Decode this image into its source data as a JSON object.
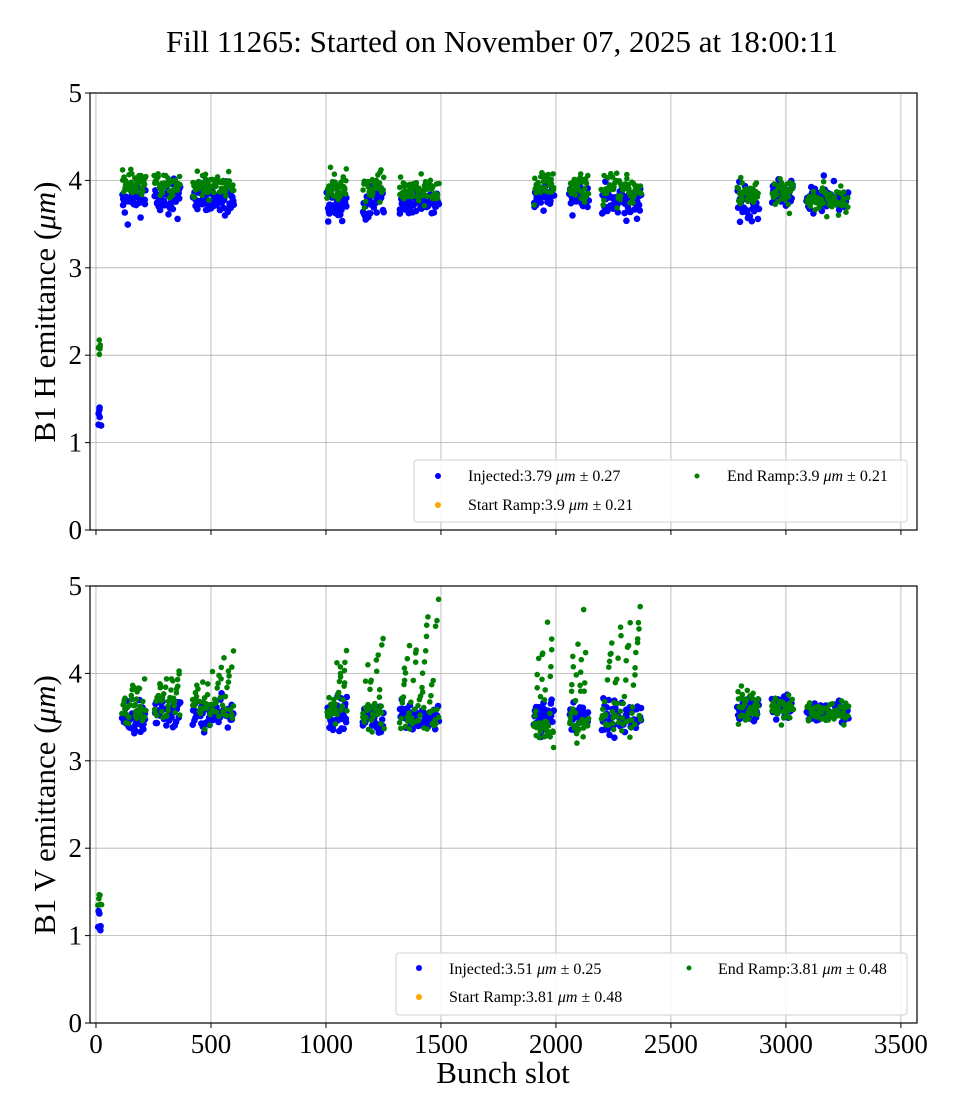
{
  "chart_data": [
    {
      "type": "scatter",
      "title": "Fill 11265: Started on November 07, 2025 at 18:00:11",
      "xlabel": "",
      "ylabel_prefix": "B1 H emittance (",
      "ylabel_unit": "μm",
      "ylabel_suffix": ")",
      "xlim": [
        -26,
        3570
      ],
      "ylim": [
        0,
        5
      ],
      "xticks": [
        0,
        500,
        1000,
        1500,
        2000,
        2500,
        3000,
        3500
      ],
      "xtick_labels_visible": false,
      "yticks": [
        0,
        1,
        2,
        3,
        4,
        5
      ],
      "ytick_labels": [
        "0",
        "1",
        "2",
        "3",
        "4",
        "5"
      ],
      "grid": true,
      "legend": {
        "placement": "lower-right",
        "entries": [
          {
            "name": "Injected",
            "label_prefix": "Injected:3.79 ",
            "unit": "μm",
            "label_suffix": " ± 0.27",
            "color": "#0000ff"
          },
          {
            "name": "Start Ramp",
            "label_prefix": "Start Ramp:3.9 ",
            "unit": "μm",
            "label_suffix": " ± 0.21",
            "color": "#ffa500"
          },
          {
            "name": "End Ramp",
            "label_prefix": "End Ramp:3.9 ",
            "unit": "μm",
            "label_suffix": " ± 0.21",
            "color": "#008000"
          }
        ]
      },
      "series": [
        {
          "name": "Injected",
          "color": "#0000ff",
          "clusters": [
            {
              "x": [
                10,
                20
              ],
              "mean": 1.32,
              "spread": 0.07,
              "n": 6
            },
            {
              "x": [
                115,
                215
              ],
              "mean": 3.78,
              "spread": 0.1,
              "n": 40
            },
            {
              "x": [
                255,
                365
              ],
              "mean": 3.79,
              "spread": 0.09,
              "n": 40
            },
            {
              "x": [
                420,
                600
              ],
              "mean": 3.78,
              "spread": 0.09,
              "n": 60
            },
            {
              "x": [
                1005,
                1090
              ],
              "mean": 3.72,
              "spread": 0.09,
              "n": 36
            },
            {
              "x": [
                1160,
                1250
              ],
              "mean": 3.75,
              "spread": 0.09,
              "n": 36
            },
            {
              "x": [
                1320,
                1490
              ],
              "mean": 3.77,
              "spread": 0.07,
              "n": 60
            },
            {
              "x": [
                1905,
                1990
              ],
              "mean": 3.82,
              "spread": 0.09,
              "n": 36
            },
            {
              "x": [
                2060,
                2140
              ],
              "mean": 3.82,
              "spread": 0.07,
              "n": 36
            },
            {
              "x": [
                2200,
                2370
              ],
              "mean": 3.76,
              "spread": 0.08,
              "n": 60
            },
            {
              "x": [
                2790,
                2880
              ],
              "mean": 3.76,
              "spread": 0.1,
              "n": 36
            },
            {
              "x": [
                2940,
                3030
              ],
              "mean": 3.84,
              "spread": 0.08,
              "n": 36
            },
            {
              "x": [
                3090,
                3270
              ],
              "mean": 3.79,
              "spread": 0.07,
              "n": 60
            }
          ]
        },
        {
          "name": "Start Ramp",
          "color": "#ffa500",
          "clusters": []
        },
        {
          "name": "End Ramp",
          "color": "#008000",
          "clusters": [
            {
              "x": [
                10,
                20
              ],
              "mean": 2.07,
              "spread": 0.05,
              "n": 6
            },
            {
              "x": [
                115,
                215
              ],
              "mean": 3.98,
              "spread": 0.09,
              "n": 40
            },
            {
              "x": [
                255,
                365
              ],
              "mean": 3.94,
              "spread": 0.07,
              "n": 40
            },
            {
              "x": [
                420,
                600
              ],
              "mean": 3.95,
              "spread": 0.07,
              "n": 60
            },
            {
              "x": [
                1005,
                1090
              ],
              "mean": 3.92,
              "spread": 0.08,
              "n": 36
            },
            {
              "x": [
                1160,
                1250
              ],
              "mean": 3.93,
              "spread": 0.07,
              "n": 36
            },
            {
              "x": [
                1320,
                1490
              ],
              "mean": 3.88,
              "spread": 0.07,
              "n": 60
            },
            {
              "x": [
                1905,
                1990
              ],
              "mean": 3.95,
              "spread": 0.08,
              "n": 36
            },
            {
              "x": [
                2060,
                2140
              ],
              "mean": 3.92,
              "spread": 0.07,
              "n": 36
            },
            {
              "x": [
                2200,
                2370
              ],
              "mean": 3.89,
              "spread": 0.08,
              "n": 60
            },
            {
              "x": [
                2790,
                2880
              ],
              "mean": 3.86,
              "spread": 0.09,
              "n": 36
            },
            {
              "x": [
                2940,
                3030
              ],
              "mean": 3.85,
              "spread": 0.08,
              "n": 36
            },
            {
              "x": [
                3090,
                3270
              ],
              "mean": 3.77,
              "spread": 0.07,
              "n": 60
            }
          ]
        }
      ]
    },
    {
      "type": "scatter",
      "title": "",
      "xlabel": "Bunch slot",
      "ylabel_prefix": "B1 V emittance (",
      "ylabel_unit": "μm",
      "ylabel_suffix": ")",
      "xlim": [
        -26,
        3570
      ],
      "ylim": [
        0,
        5
      ],
      "xticks": [
        0,
        500,
        1000,
        1500,
        2000,
        2500,
        3000,
        3500
      ],
      "xtick_labels": [
        "0",
        "500",
        "1000",
        "1500",
        "2000",
        "2500",
        "3000",
        "3500"
      ],
      "xtick_labels_visible": true,
      "yticks": [
        0,
        1,
        2,
        3,
        4,
        5
      ],
      "ytick_labels": [
        "0",
        "1",
        "2",
        "3",
        "4",
        "5"
      ],
      "grid": true,
      "legend": {
        "placement": "lower-right",
        "entries": [
          {
            "name": "Injected",
            "label_prefix": "Injected:3.51 ",
            "unit": "μm",
            "label_suffix": " ± 0.25",
            "color": "#0000ff"
          },
          {
            "name": "Start Ramp",
            "label_prefix": "Start Ramp:3.81 ",
            "unit": "μm",
            "label_suffix": " ± 0.48",
            "color": "#ffa500"
          },
          {
            "name": "End Ramp",
            "label_prefix": "End Ramp:3.81 ",
            "unit": "μm",
            "label_suffix": " ± 0.48",
            "color": "#008000"
          }
        ]
      },
      "series": [
        {
          "name": "Injected",
          "color": "#0000ff",
          "clusters": [
            {
              "x": [
                10,
                22
              ],
              "mean": 1.17,
              "spread": 0.07,
              "n": 6
            },
            {
              "x": [
                115,
                215
              ],
              "mean": 3.47,
              "spread": 0.09,
              "n": 40
            },
            {
              "x": [
                255,
                365
              ],
              "mean": 3.55,
              "spread": 0.08,
              "n": 40
            },
            {
              "x": [
                420,
                600
              ],
              "mean": 3.52,
              "spread": 0.08,
              "n": 60
            },
            {
              "x": [
                1005,
                1090
              ],
              "mean": 3.53,
              "spread": 0.09,
              "n": 36
            },
            {
              "x": [
                1160,
                1250
              ],
              "mean": 3.49,
              "spread": 0.08,
              "n": 36
            },
            {
              "x": [
                1320,
                1490
              ],
              "mean": 3.5,
              "spread": 0.08,
              "n": 60
            },
            {
              "x": [
                1905,
                1990
              ],
              "mean": 3.53,
              "spread": 0.09,
              "n": 36
            },
            {
              "x": [
                2060,
                2140
              ],
              "mean": 3.52,
              "spread": 0.09,
              "n": 36
            },
            {
              "x": [
                2200,
                2370
              ],
              "mean": 3.5,
              "spread": 0.09,
              "n": 60
            },
            {
              "x": [
                2790,
                2880
              ],
              "mean": 3.56,
              "spread": 0.08,
              "n": 36
            },
            {
              "x": [
                2940,
                3030
              ],
              "mean": 3.6,
              "spread": 0.07,
              "n": 36
            },
            {
              "x": [
                3090,
                3270
              ],
              "mean": 3.56,
              "spread": 0.06,
              "n": 60
            }
          ]
        },
        {
          "name": "Start Ramp",
          "color": "#ffa500",
          "clusters": []
        },
        {
          "name": "End Ramp",
          "color": "#008000",
          "clusters": [
            {
              "x": [
                10,
                22
              ],
              "mean": 1.4,
              "spread": 0.06,
              "n": 6
            },
            {
              "x": [
                115,
                215
              ],
              "mean": 3.55,
              "spread": 0.08,
              "n": 40,
              "rise_to": 3.95
            },
            {
              "x": [
                255,
                365
              ],
              "mean": 3.6,
              "spread": 0.08,
              "n": 40,
              "rise_to": 4.08
            },
            {
              "x": [
                420,
                600
              ],
              "mean": 3.6,
              "spread": 0.08,
              "n": 60,
              "rise_to": 4.3
            },
            {
              "x": [
                1005,
                1090
              ],
              "mean": 3.55,
              "spread": 0.08,
              "n": 36,
              "rise_to": 4.28
            },
            {
              "x": [
                1160,
                1250
              ],
              "mean": 3.5,
              "spread": 0.08,
              "n": 36,
              "rise_to": 4.55
            },
            {
              "x": [
                1320,
                1490
              ],
              "mean": 3.48,
              "spread": 0.08,
              "n": 60,
              "rise_to": 5.0
            },
            {
              "x": [
                1905,
                1990
              ],
              "mean": 3.35,
              "spread": 0.08,
              "n": 40,
              "rise_to": 5.0
            },
            {
              "x": [
                2060,
                2140
              ],
              "mean": 3.4,
              "spread": 0.08,
              "n": 40,
              "rise_to": 5.0
            },
            {
              "x": [
                2200,
                2370
              ],
              "mean": 3.45,
              "spread": 0.08,
              "n": 60,
              "rise_to": 4.95
            },
            {
              "x": [
                2790,
                2880
              ],
              "mean": 3.62,
              "spread": 0.09,
              "n": 36
            },
            {
              "x": [
                2940,
                3030
              ],
              "mean": 3.62,
              "spread": 0.07,
              "n": 36
            },
            {
              "x": [
                3090,
                3270
              ],
              "mean": 3.55,
              "spread": 0.06,
              "n": 60
            }
          ]
        }
      ]
    }
  ]
}
